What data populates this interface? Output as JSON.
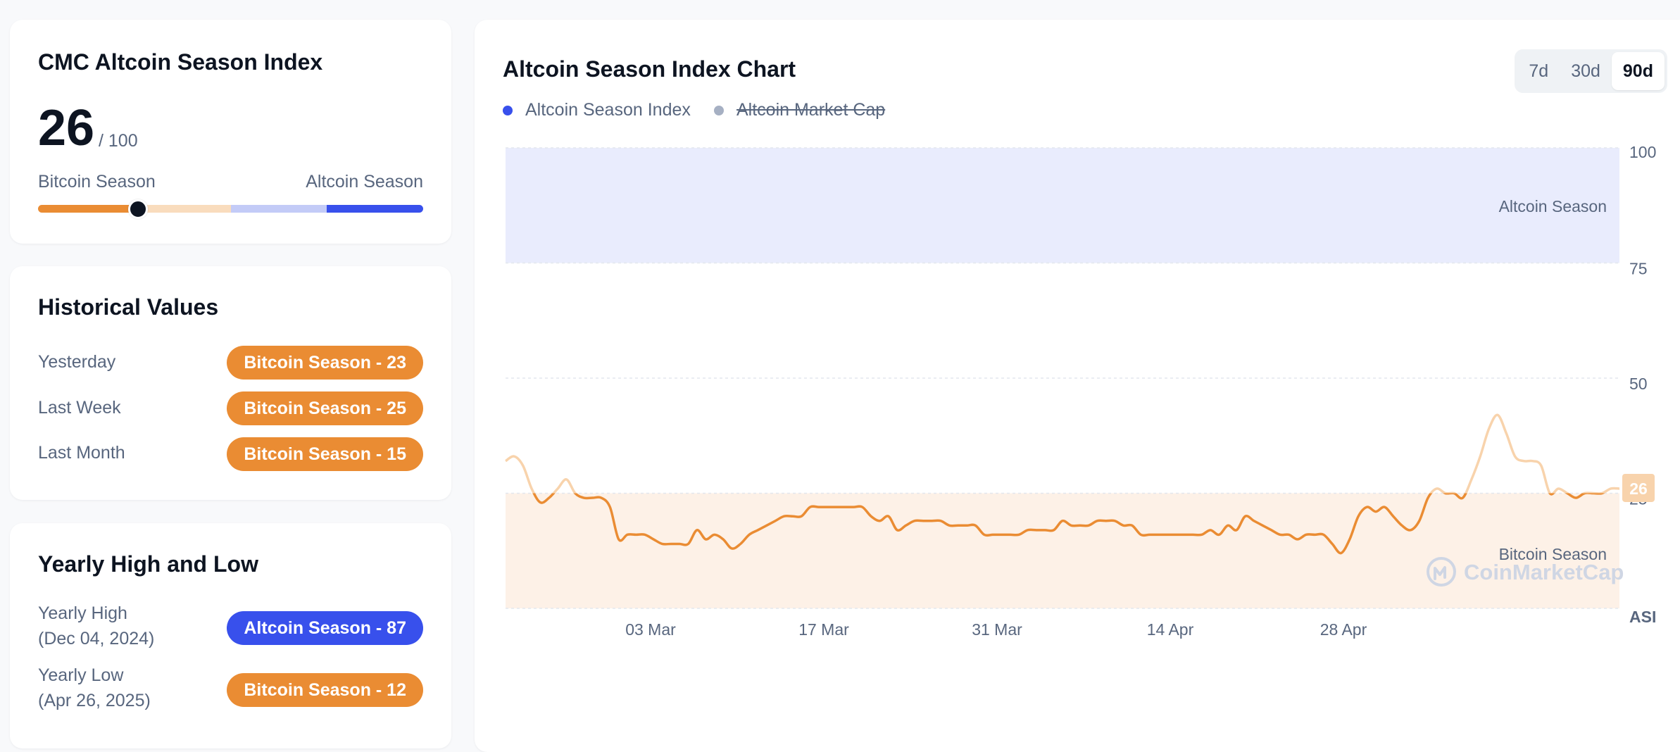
{
  "index_card": {
    "title": "CMC Altcoin Season Index",
    "value": "26",
    "max": "/ 100",
    "left_label": "Bitcoin Season",
    "right_label": "Altcoin Season",
    "indicator_value": 26,
    "segment_colors": [
      "#ea8c33",
      "#f9dcbd",
      "#c3cbf7",
      "#3850ec"
    ]
  },
  "historical": {
    "title": "Historical Values",
    "rows": [
      {
        "label": "Yesterday",
        "badge": "Bitcoin Season - 23",
        "color": "orange"
      },
      {
        "label": "Last Week",
        "badge": "Bitcoin Season - 25",
        "color": "orange"
      },
      {
        "label": "Last Month",
        "badge": "Bitcoin Season - 15",
        "color": "orange"
      }
    ]
  },
  "yearly": {
    "title": "Yearly High and Low",
    "high": {
      "label": "Yearly High",
      "date": "(Dec 04, 2024)",
      "badge": "Altcoin Season - 87",
      "color": "blue"
    },
    "low": {
      "label": "Yearly Low",
      "date": "(Apr 26, 2025)",
      "badge": "Bitcoin Season - 12",
      "color": "orange"
    }
  },
  "chart_card": {
    "title": "Altcoin Season Index Chart",
    "ranges": [
      "7d",
      "30d",
      "90d"
    ],
    "active_range": "90d",
    "legend": [
      {
        "label": "Altcoin Season Index",
        "color": "#3850ec"
      },
      {
        "label": "Altcoin Market Cap",
        "color": "#a6b0c3",
        "disabled": true
      }
    ],
    "zone_top_label": "Altcoin Season",
    "zone_bottom_label": "Bitcoin Season",
    "watermark": "CoinMarketCap",
    "current_value_label": "26"
  },
  "chart_data": {
    "type": "line",
    "title": "Altcoin Season Index Chart",
    "ylabel": "ASI",
    "ylim": [
      0,
      100
    ],
    "y_ticks": [
      25,
      50,
      75,
      100
    ],
    "x_ticks": [
      "03 Mar",
      "17 Mar",
      "31 Mar",
      "14 Apr",
      "28 Apr"
    ],
    "grid": true,
    "colors": {
      "line": "#ea8c33",
      "line_light": "#f8d3ac",
      "altcoin_zone": "#e9ecfd",
      "bitcoin_zone": "#fdf1e7"
    },
    "zones": [
      {
        "label": "Altcoin Season",
        "from": 75,
        "to": 100
      },
      {
        "label": "Bitcoin Season",
        "from": 0,
        "to": 25
      }
    ],
    "series": [
      {
        "name": "Altcoin Season Index",
        "values": [
          32,
          33,
          31,
          26,
          23,
          24,
          26,
          28,
          25,
          24,
          24,
          24,
          22,
          15,
          16,
          16,
          16,
          15,
          14,
          14,
          14,
          14,
          17,
          15,
          16,
          15,
          13,
          14,
          16,
          17,
          18,
          19,
          20,
          20,
          20,
          22,
          22,
          22,
          22,
          22,
          22,
          22,
          20,
          19,
          20,
          17,
          18,
          19,
          19,
          19,
          19,
          18,
          18,
          18,
          18,
          16,
          16,
          16,
          16,
          16,
          17,
          17,
          17,
          17,
          19,
          18,
          18,
          18,
          19,
          19,
          19,
          18,
          18,
          16,
          16,
          16,
          16,
          16,
          16,
          16,
          16,
          17,
          16,
          18,
          17,
          20,
          19,
          18,
          17,
          16,
          16,
          15,
          16,
          16,
          16,
          14,
          12,
          15,
          20,
          22,
          21,
          22,
          20,
          18,
          17,
          19,
          24,
          26,
          25,
          25,
          24,
          28,
          33,
          39,
          42,
          38,
          33,
          32,
          32,
          31,
          25,
          26,
          25,
          24,
          25,
          25,
          25,
          26,
          26
        ]
      }
    ]
  }
}
